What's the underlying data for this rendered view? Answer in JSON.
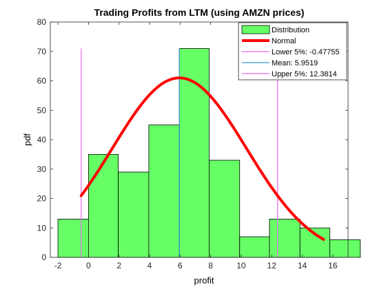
{
  "chart_data": {
    "type": "bar",
    "title": "Trading Profits from LTM (using AMZN prices)",
    "xlabel": "profit",
    "ylabel": "pdf",
    "xlim": [
      -2.5,
      17
    ],
    "ylim": [
      0,
      80
    ],
    "xticks": [
      -2,
      0,
      2,
      4,
      6,
      8,
      10,
      12,
      14,
      16
    ],
    "yticks": [
      0,
      10,
      20,
      30,
      40,
      50,
      60,
      70,
      80
    ],
    "grid": false,
    "legend_position": "top-right",
    "histogram": {
      "name": "Distribution",
      "color": "#66ff66",
      "bins": [
        {
          "x0": -2.0,
          "x1": 0.0,
          "value": 13
        },
        {
          "x0": 0.0,
          "x1": 1.95,
          "value": 35
        },
        {
          "x0": 1.95,
          "x1": 3.95,
          "value": 29
        },
        {
          "x0": 3.95,
          "x1": 5.95,
          "value": 45
        },
        {
          "x0": 5.95,
          "x1": 7.9,
          "value": 71
        },
        {
          "x0": 7.9,
          "x1": 9.9,
          "value": 33
        },
        {
          "x0": 9.9,
          "x1": 11.85,
          "value": 7
        },
        {
          "x0": 11.85,
          "x1": 13.85,
          "value": 13
        },
        {
          "x0": 13.85,
          "x1": 15.8,
          "value": 10
        },
        {
          "x0": 15.8,
          "x1": 17.8,
          "value": 6
        }
      ]
    },
    "normal_curve": {
      "name": "Normal",
      "color": "#ff0000",
      "mean": 5.9519,
      "sd": 4.4,
      "peak": 61,
      "x_range": [
        -0.47755,
        15.4
      ]
    },
    "vertical_lines": [
      {
        "name": "Lower 5%: -0.47755",
        "x": -0.47755,
        "y_top": 71,
        "color": "#ee66ee"
      },
      {
        "name": "Mean: 5.9519",
        "x": 5.9519,
        "y_top": 71,
        "color": "#3399cc"
      },
      {
        "name": "Upper 5%: 12.3814",
        "x": 12.3814,
        "y_top": 71,
        "color": "#ee66ee"
      }
    ]
  }
}
